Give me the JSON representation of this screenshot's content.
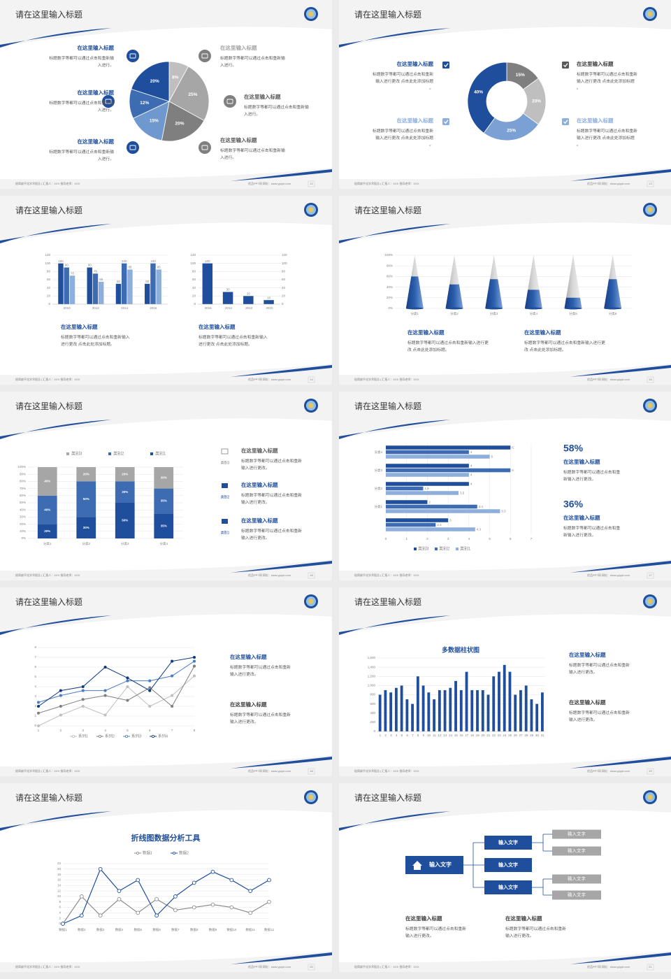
{
  "slides": [
    {
      "title": "请在这里输入标题",
      "footer": "极简扁平化学术报告 | 汇报人：XXX  指导老师：XXX",
      "website": "优品PPT网  网址：www.ypppt.com",
      "page": 12,
      "chart": {
        "type": "pie",
        "values": [
          8,
          25,
          20,
          15,
          12,
          20
        ],
        "value_labels": [
          "8%",
          "25%",
          "20%",
          "15%",
          "12%",
          "20%"
        ],
        "colors": [
          "#bfbfbf",
          "#a6a6a6",
          "#7f7f7f",
          "#6f98cf",
          "#3d6cb3",
          "#1f4e9c"
        ]
      },
      "items": [
        {
          "title": "在这里输入标题",
          "text": "标题数字等都可以通过点击和重新输入进行。"
        },
        {
          "title": "在这里输入标题",
          "text": "标题数字等都可以通过点击和重新输入进行。"
        },
        {
          "title": "在这里输入标题",
          "text": "标题数字等都可以通过点击和重新输入进行。"
        },
        {
          "title": "在这里输入标题",
          "text": "标题数字等都可以通过点击和重新输入进行。"
        },
        {
          "title": "在这里输入标题",
          "text": "标题数字等都可以通过点击和重新输入进行。"
        },
        {
          "title": "在这里输入标题",
          "text": "标题数字等都可以通过点击和重新输入进行。"
        }
      ]
    },
    {
      "title": "请在这里输入标题",
      "footer": "极简扁平化学术报告 | 汇报人：XXX  指导老师：XXX",
      "website": "优品PPT网  网址：www.ypppt.com",
      "page": 13,
      "chart": {
        "type": "donut",
        "values": [
          15,
          20,
          25,
          40
        ],
        "value_labels": [
          "15%",
          "20%",
          "25%",
          "40%"
        ],
        "colors": [
          "#7f7f7f",
          "#bfbfbf",
          "#7ba0d4",
          "#1f4e9c"
        ]
      },
      "items": [
        {
          "title": "在这里输入标题",
          "text": "标题数字等都可以通过点击和重新输入进行更改 点击此处添加标题。"
        },
        {
          "title": "在这里输入标题",
          "text": "标题数字等都可以通过点击和重新输入进行更改 点击此处添加标题。"
        },
        {
          "title": "在这里输入标题",
          "text": "标题数字等都可以通过点击和重新输入进行更改 点击此处添加标题。"
        },
        {
          "title": "在这里输入标题",
          "text": "标题数字等都可以通过点击和重新输入进行更改 点击此处添加标题。"
        }
      ]
    },
    {
      "title": "请在这里输入标题",
      "footer": "极简扁平化学术报告 | 汇报人：XXX  指导老师：XXX",
      "website": "优品PPT网  网址：www.ypppt.com",
      "page": 14,
      "charts": [
        {
          "type": "bar",
          "categories": [
            "2010",
            "2012",
            "2014",
            "2016"
          ],
          "series": [
            {
              "color": "#1f4e9c",
              "values": [
                100,
                90,
                50,
                50
              ]
            },
            {
              "color": "#3d6cb3",
              "values": [
                90,
                75,
                100,
                100
              ]
            },
            {
              "color": "#8eaedb",
              "values": [
                70,
                55,
                85,
                85
              ]
            }
          ],
          "ylim": [
            0,
            120
          ],
          "yticks": [
            0,
            20,
            40,
            60,
            80,
            100,
            120
          ],
          "data_labels": true
        },
        {
          "type": "bar",
          "categories": [
            "2016",
            "2014",
            "2012",
            "2010"
          ],
          "series": [
            {
              "color": "#1f4e9c",
              "values": [
                100,
                30,
                20,
                10
              ]
            }
          ],
          "ylim": [
            0,
            120
          ],
          "yticks": [
            0,
            20,
            40,
            60,
            80,
            100,
            120
          ],
          "y2lim": [
            0,
            120
          ],
          "y2ticks": [
            0,
            20,
            40,
            60,
            80,
            100,
            120
          ],
          "data_labels": true
        }
      ],
      "items": [
        {
          "title": "在这里输入标题",
          "text": "标题数字等都可以通过点击和重新输入进行更改 点击此处添加标题。"
        },
        {
          "title": "在这里输入标题",
          "text": "标题数字等都可以通过点击和重新输入进行更改 点击此处添加标题。"
        }
      ]
    },
    {
      "title": "请在这里输入标题",
      "footer": "极简扁平化学术报告 | 汇报人：XXX  指导老师：XXX",
      "website": "优品PPT网  网址：www.ypppt.com",
      "page": 15,
      "chart": {
        "type": "cone",
        "categories": [
          "分类1",
          "分类2",
          "分类3",
          "分类4",
          "分类5",
          "分类6"
        ],
        "values": [
          60,
          45,
          55,
          35,
          20,
          55
        ],
        "color": "#1f4e9c",
        "ylim": [
          0,
          100
        ],
        "yticks": [
          {
            "value": 0,
            "label": "0%"
          },
          {
            "value": 20,
            "label": "20%"
          },
          {
            "value": 40,
            "label": "40%"
          },
          {
            "value": 60,
            "label": "60%"
          },
          {
            "value": 80,
            "label": "80%"
          },
          {
            "value": 100,
            "label": "100%"
          }
        ]
      },
      "items": [
        {
          "title": "在这里输入标题",
          "text": "标题数字等都可以通过点击和重新输入进行更改 点击此处添加标题。"
        },
        {
          "title": "在这里输入标题",
          "text": "标题数字等都可以通过点击和重新输入进行更改 点击此处添加标题。"
        }
      ]
    },
    {
      "title": "请在这里输入标题",
      "footer": "极简扁平化学术报告 | 汇报人：XXX  指导老师：XXX",
      "website": "优品PPT网  网址：www.ypppt.com",
      "page": 16,
      "chart": {
        "type": "stacked_bar",
        "categories": [
          "分类1",
          "分类2",
          "分类3",
          "分类4"
        ],
        "series": [
          {
            "name": "类别1",
            "color": "#1f4e9c",
            "values": [
              20,
              30,
              50,
              35
            ],
            "value_labels": [
              "20%",
              "30%",
              "50%",
              "35%"
            ]
          },
          {
            "name": "类别2",
            "color": "#3d6cb3",
            "values": [
              40,
              50,
              30,
              35
            ],
            "value_labels": [
              "40%",
              "50%",
              "30%",
              "35%"
            ]
          },
          {
            "name": "类别3",
            "color": "#a6a6a6",
            "values": [
              40,
              20,
              20,
              30
            ],
            "value_labels": [
              "40%",
              "20%",
              "20%",
              "30%"
            ]
          }
        ],
        "ylim": [
          0,
          100
        ],
        "yticks": [
          {
            "value": 0,
            "label": "0%"
          },
          {
            "value": 10,
            "label": "10%"
          },
          {
            "value": 20,
            "label": "20%"
          },
          {
            "value": 30,
            "label": "30%"
          },
          {
            "value": 40,
            "label": "40%"
          },
          {
            "value": 50,
            "label": "50%"
          },
          {
            "value": 60,
            "label": "60%"
          },
          {
            "value": 70,
            "label": "70%"
          },
          {
            "value": 80,
            "label": "80%"
          },
          {
            "value": 90,
            "label": "90%"
          },
          {
            "value": 100,
            "label": "100%"
          }
        ]
      },
      "items": [
        {
          "icon_label": "类别3",
          "title": "在这里输入标题",
          "text": "标题数字等都可以通过点击和重新输入进行更改。"
        },
        {
          "icon_label": "类别2",
          "title": "在这里输入标题",
          "text": "标题数字等都可以通过点击和重新输入进行更改。"
        },
        {
          "icon_label": "类别1",
          "title": "在这里输入标题",
          "text": "标题数字等都可以通过点击和重新输入进行更改。"
        }
      ]
    },
    {
      "title": "请在这里输入标题",
      "footer": "极简扁平化学术报告 | 汇报人：XXX  指导老师：XXX",
      "website": "优品PPT网  网址：www.ypppt.com",
      "page": 17,
      "chart": {
        "type": "hbar",
        "categories": [
          null,
          "分类1",
          "分类2",
          "分类3",
          "分类4"
        ],
        "series": [
          {
            "name": "类别3",
            "color": "#1f4e9c",
            "values": [
              3,
              2,
              4,
              4,
              6
            ]
          },
          {
            "name": "类别2",
            "color": "#3d6cb3",
            "values": [
              2.4,
              4.4,
              1.8,
              6,
              4
            ]
          },
          {
            "name": "类别1",
            "color": "#8eaedb",
            "values": [
              4.3,
              5.5,
              3.5,
              4,
              5
            ]
          }
        ],
        "xlim": [
          0,
          7
        ],
        "xticks": [
          0,
          1,
          2,
          3,
          4,
          5,
          6,
          7
        ]
      },
      "items": [
        {
          "stat": "58%",
          "title": "在这里输入标题",
          "text": "标题数字等都可以通过点击和重新输入进行更改。"
        },
        {
          "stat": "36%",
          "title": "在这里输入标题",
          "text": "标题数字等都可以通过点击和重新输入进行更改。"
        }
      ]
    },
    {
      "title": "请在这里输入标题",
      "footer": "极简扁平化学术报告 | 汇报人：XXX  指导老师：XXX",
      "website": "优品PPT网  网址：www.ypppt.com",
      "page": 18,
      "chart": {
        "type": "line",
        "marker": "filled",
        "x": [
          1,
          2,
          3,
          4,
          5,
          6,
          7,
          8
        ],
        "xlim": [
          1,
          8
        ],
        "xticks": [
          1,
          2,
          3,
          4,
          5,
          6,
          7,
          8
        ],
        "ylim": [
          0,
          8
        ],
        "yticks": [
          0,
          1,
          2,
          3,
          4,
          5,
          6,
          7,
          8
        ],
        "series": [
          {
            "name": "系列1",
            "color": "#bfbfbf",
            "values": [
              0,
              1.1,
              2,
              1.1,
              4,
              2,
              3.1,
              5.1
            ]
          },
          {
            "name": "系列2",
            "color": "#7f7f7f",
            "values": [
              1.3,
              2,
              2.7,
              3.1,
              2.6,
              3.9,
              2,
              6.1
            ]
          },
          {
            "name": "系列3",
            "color": "#4a7cc4",
            "values": [
              2.4,
              3.1,
              3.6,
              3.6,
              4.6,
              4.6,
              5.1,
              6.6
            ]
          },
          {
            "name": "系列4",
            "color": "#0f3a80",
            "values": [
              2,
              3.6,
              4,
              6,
              4.9,
              3.6,
              6.6,
              7
            ]
          }
        ]
      },
      "items": [
        {
          "title": "在这里输入标题",
          "text": "标题数字等都可以通过点击和重新输入进行更改。"
        },
        {
          "title": "在这里输入标题",
          "text": "标题数字等都可以通过点击和重新输入进行更改。"
        }
      ]
    },
    {
      "title": "请在这里输入标题",
      "footer": "极简扁平化学术报告 | 汇报人：XXX  指导老师：XXX",
      "website": "优品PPT网  网址：www.ypppt.com",
      "page": 19,
      "chart": {
        "type": "bar",
        "title": "多数据柱状图",
        "categories": [
          "1",
          "2",
          "3",
          "4",
          "5",
          "6",
          "7",
          "8",
          "9",
          "10",
          "11",
          "12",
          "13",
          "14",
          "15",
          "16",
          "17",
          "18",
          "19",
          "20",
          "21",
          "22",
          "23",
          "24",
          "25",
          "26",
          "27",
          "28",
          "29",
          "30",
          "31"
        ],
        "series": [
          {
            "color": "#1f4e9c",
            "values": [
              800,
              900,
              850,
              950,
              1000,
              700,
              600,
              1200,
              1000,
              850,
              700,
              900,
              900,
              950,
              1100,
              900,
              1300,
              900,
              900,
              900,
              800,
              1200,
              1300,
              1450,
              1300,
              800,
              900,
              1000,
              700,
              600,
              850
            ]
          }
        ],
        "ylim": [
          0,
          1600
        ],
        "yticks": [
          0,
          200,
          400,
          600,
          800,
          {
            "value": 1000,
            "label": "1,000"
          },
          {
            "value": 1200,
            "label": "1,200"
          },
          {
            "value": 1400,
            "label": "1,400"
          },
          {
            "value": 1600,
            "label": "1,600"
          }
        ],
        "data_labels": false
      },
      "items": [
        {
          "title": "在这里输入标题",
          "text": "标题数字等都可以通过点击和重新输入进行更改。"
        },
        {
          "title": "在这里输入标题",
          "text": "标题数字等都可以通过点击和重新输入进行更改。"
        }
      ]
    },
    {
      "title": "请在这里输入标题",
      "footer": "极简扁平化学术报告 | 汇报人：XXX  指导老师：XXX",
      "website": "优品PPT网  网址：www.ypppt.com",
      "page": 20,
      "chart": {
        "type": "line",
        "marker": "hollow",
        "title": "折线图数据分析工具",
        "categories": [
          "数据1",
          "数据2",
          "数据3",
          "数据4",
          "数据5",
          "数据6",
          "数据7",
          "数据8",
          "数据9",
          "数据10",
          "数据11",
          "数据12"
        ],
        "ylim": [
          0,
          22
        ],
        "yticks": [
          0,
          2,
          4,
          6,
          8,
          10,
          12,
          14,
          16,
          18,
          20,
          22
        ],
        "series": [
          {
            "name": "数据1",
            "color": "#8c8c8c",
            "values": [
              0,
              10,
              3,
              9,
              4,
              9,
              5,
              6,
              7,
              6,
              4,
              8
            ]
          },
          {
            "name": "数据2",
            "color": "#1f4e9c",
            "values": [
              0,
              3,
              20,
              12,
              16,
              3,
              10,
              15,
              19,
              16,
              12,
              16
            ]
          }
        ]
      }
    },
    {
      "title": "请在这里输入标题",
      "footer": "极简扁平化学术报告 | 汇报人：XXX  指导老师：XXX",
      "website": "优品PPT网  网址：www.ypppt.com",
      "page": 21,
      "diagram": {
        "root": "输入文字",
        "branches": [
          "输入文字",
          "输入文字",
          "输入文字"
        ],
        "leaves": [
          "输入文字",
          "输入文字",
          "输入文字",
          "输入文字"
        ]
      },
      "items": [
        {
          "title": "在这里输入标题",
          "text": "标题数字等都可以通过点击和重新输入进行更改。"
        },
        {
          "title": "在这里输入标题",
          "text": "标题数字等都可以通过点击和重新输入进行更改。"
        }
      ]
    }
  ]
}
